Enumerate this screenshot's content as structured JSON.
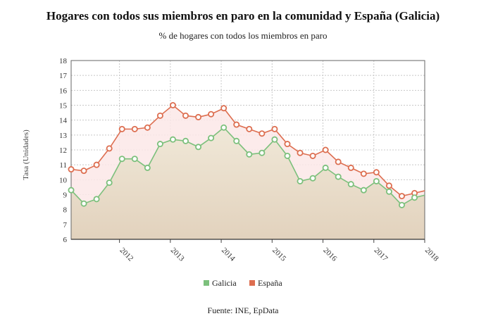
{
  "title": "Hogares con todos sus miembros en paro en la comunidad y España (Galicia)",
  "subtitle": "% de hogares con todos los miembros en paro",
  "source": "Fuente: INE, EpData",
  "colors": {
    "galicia": "#7cc07c",
    "espana": "#dd6e50",
    "galicia_fill_top": "#f0e8d8",
    "galicia_fill_bottom": "#e2d2bd",
    "between_fill": "#fce8e8",
    "grid": "#c8c8c8"
  },
  "chart_data": {
    "type": "line",
    "title": "Hogares con todos sus miembros en paro en la comunidad y España (Galicia)",
    "subtitle": "% de hogares con todos los miembros en paro",
    "ylabel": "Tasa (Unidades)",
    "xlabel": "",
    "ylim": [
      6,
      18
    ],
    "yticks": [
      6,
      7,
      8,
      9,
      10,
      11,
      12,
      13,
      14,
      15,
      16,
      17,
      18
    ],
    "xlim": [
      2011.05,
      2018.0
    ],
    "xticks": [
      "2012",
      "2013",
      "2014",
      "2015",
      "2016",
      "2017",
      "2018"
    ],
    "grid": true,
    "legend_position": "bottom",
    "x": [
      2011.05,
      2011.3,
      2011.55,
      2011.8,
      2012.05,
      2012.3,
      2012.55,
      2012.8,
      2013.05,
      2013.3,
      2013.55,
      2013.8,
      2014.05,
      2014.3,
      2014.55,
      2014.8,
      2015.05,
      2015.3,
      2015.55,
      2015.8,
      2016.05,
      2016.3,
      2016.55,
      2016.8,
      2017.05,
      2017.3,
      2017.55,
      2017.8,
      2018.05
    ],
    "series": [
      {
        "name": "Galicia",
        "values": [
          9.3,
          8.4,
          8.7,
          9.8,
          11.4,
          11.4,
          10.8,
          12.4,
          12.7,
          12.6,
          12.2,
          12.8,
          13.5,
          12.6,
          11.7,
          11.8,
          12.7,
          11.6,
          9.9,
          10.1,
          10.8,
          10.2,
          9.7,
          9.3,
          9.9,
          9.2,
          8.3,
          8.8,
          9.0
        ]
      },
      {
        "name": "España",
        "values": [
          10.7,
          10.6,
          11.0,
          12.1,
          13.4,
          13.4,
          13.5,
          14.3,
          15.0,
          14.3,
          14.2,
          14.4,
          14.8,
          13.7,
          13.4,
          13.1,
          13.4,
          12.4,
          11.8,
          11.6,
          12.0,
          11.2,
          10.8,
          10.4,
          10.5,
          9.6,
          8.9,
          9.1,
          9.3
        ]
      }
    ]
  }
}
